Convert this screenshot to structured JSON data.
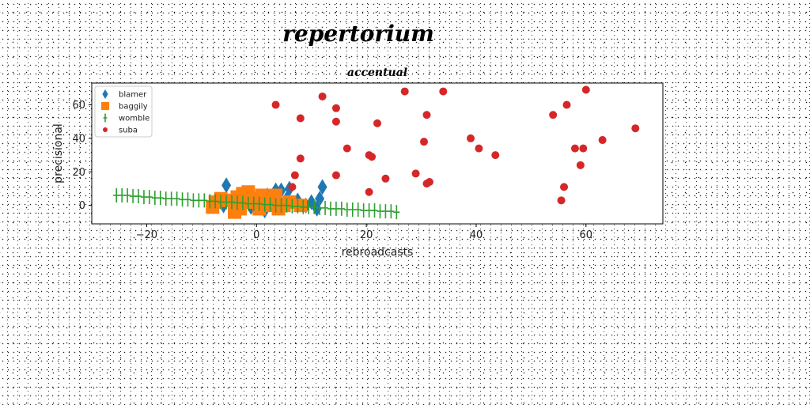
{
  "chart_data": {
    "type": "scatter",
    "suptitle": "repertorium",
    "title": "accentual",
    "xlabel": "rebroadcasts",
    "ylabel": "precisional",
    "xlim": [
      -30,
      74
    ],
    "ylim": [
      -11,
      73
    ],
    "xticks": [
      -20,
      0,
      20,
      40,
      60
    ],
    "yticks": [
      0,
      20,
      40,
      60
    ],
    "grid": false,
    "legend_position": "top-left",
    "series": [
      {
        "name": "blamer",
        "marker": "thin_diamond",
        "color": "#1f77b4",
        "points": [
          [
            -5.5,
            12
          ],
          [
            -6,
            0
          ],
          [
            -3,
            5
          ],
          [
            0,
            2
          ],
          [
            2,
            6
          ],
          [
            3.5,
            9
          ],
          [
            4.5,
            9
          ],
          [
            6,
            10
          ],
          [
            5.5,
            4
          ],
          [
            7.5,
            3
          ],
          [
            9,
            0
          ],
          [
            10,
            2
          ],
          [
            11,
            -2
          ],
          [
            12,
            11
          ],
          [
            11.5,
            4
          ],
          [
            -1,
            -1
          ],
          [
            1.5,
            -3
          ],
          [
            -4,
            1
          ],
          [
            4,
            -1
          ]
        ]
      },
      {
        "name": "baggily",
        "marker": "square",
        "color": "#ff7f0e",
        "points": [
          [
            -8,
            -1
          ],
          [
            -7.5,
            2
          ],
          [
            -6.5,
            4
          ],
          [
            -5,
            3
          ],
          [
            -4,
            1
          ],
          [
            -3.5,
            5
          ],
          [
            -3,
            -2
          ],
          [
            -2,
            6
          ],
          [
            -1.5,
            8
          ],
          [
            -1,
            2
          ],
          [
            0,
            4
          ],
          [
            0.5,
            -2
          ],
          [
            1,
            6
          ],
          [
            2,
            0
          ],
          [
            3,
            4
          ],
          [
            3.5,
            6
          ],
          [
            4,
            -2
          ],
          [
            5,
            0
          ],
          [
            6,
            2
          ],
          [
            8,
            0
          ],
          [
            -4,
            -4
          ],
          [
            -2.5,
            7
          ]
        ]
      },
      {
        "name": "womble",
        "marker": "plus",
        "color": "#2ca02c",
        "points": [
          [
            -25.5,
            6
          ],
          [
            -24.5,
            6
          ],
          [
            -23.5,
            6
          ],
          [
            -22.5,
            5.5
          ],
          [
            -21.5,
            5.5
          ],
          [
            -20.5,
            5
          ],
          [
            -19.5,
            5
          ],
          [
            -18.5,
            4.5
          ],
          [
            -17.5,
            4.5
          ],
          [
            -16.5,
            4
          ],
          [
            -15.5,
            4
          ],
          [
            -14.5,
            4
          ],
          [
            -13.5,
            3.5
          ],
          [
            -12.5,
            3.5
          ],
          [
            -11.5,
            3
          ],
          [
            -10.5,
            3
          ],
          [
            -9.5,
            3
          ],
          [
            -8.5,
            2.5
          ],
          [
            -7.5,
            2.5
          ],
          [
            -6.5,
            2
          ],
          [
            -5.5,
            2
          ],
          [
            -4.5,
            2
          ],
          [
            -3.5,
            1.5
          ],
          [
            -2.5,
            1.5
          ],
          [
            -1.5,
            1
          ],
          [
            -0.5,
            1
          ],
          [
            0.5,
            1
          ],
          [
            1.5,
            0.5
          ],
          [
            2.5,
            0.5
          ],
          [
            3.5,
            0
          ],
          [
            4.5,
            0
          ],
          [
            5.5,
            0
          ],
          [
            6.5,
            -0.5
          ],
          [
            7.5,
            -0.5
          ],
          [
            8.5,
            -1
          ],
          [
            9.5,
            -1
          ],
          [
            10.5,
            -1
          ],
          [
            11.5,
            -1.5
          ],
          [
            12.5,
            -1.5
          ],
          [
            13.5,
            -2
          ],
          [
            14.5,
            -2
          ],
          [
            15.5,
            -2
          ],
          [
            16.5,
            -2.5
          ],
          [
            17.5,
            -2.5
          ],
          [
            18.5,
            -2.5
          ],
          [
            19.5,
            -3
          ],
          [
            20.5,
            -3
          ],
          [
            21.5,
            -3
          ],
          [
            22.5,
            -3.5
          ],
          [
            23.5,
            -3.5
          ],
          [
            24.5,
            -3.5
          ],
          [
            25.5,
            -4
          ]
        ]
      },
      {
        "name": "suba",
        "marker": "circle",
        "color": "#d62728",
        "points": [
          [
            3.5,
            60
          ],
          [
            8,
            52
          ],
          [
            12,
            65
          ],
          [
            14.5,
            58
          ],
          [
            14.5,
            50
          ],
          [
            22,
            49
          ],
          [
            27,
            68
          ],
          [
            34,
            68
          ],
          [
            31,
            54
          ],
          [
            16.5,
            34
          ],
          [
            8,
            28
          ],
          [
            7,
            18
          ],
          [
            6.5,
            11
          ],
          [
            14.5,
            18
          ],
          [
            20.5,
            30
          ],
          [
            21,
            29
          ],
          [
            20.5,
            8
          ],
          [
            23.5,
            16
          ],
          [
            29,
            19
          ],
          [
            30.5,
            38
          ],
          [
            31,
            13
          ],
          [
            31.5,
            14
          ],
          [
            39,
            40
          ],
          [
            40.5,
            34
          ],
          [
            43.5,
            30
          ],
          [
            54,
            54
          ],
          [
            56.5,
            60
          ],
          [
            60,
            69
          ],
          [
            58,
            34
          ],
          [
            59.5,
            34
          ],
          [
            59,
            24
          ],
          [
            55.5,
            3
          ],
          [
            56,
            11
          ],
          [
            63,
            39
          ],
          [
            69,
            46
          ]
        ]
      }
    ]
  }
}
